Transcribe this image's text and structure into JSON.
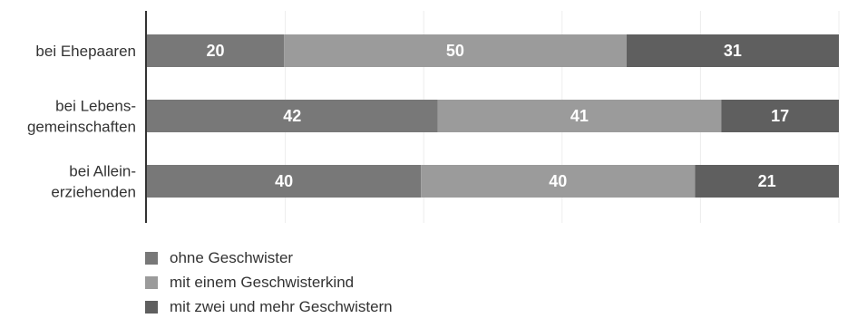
{
  "chart_data": {
    "type": "bar",
    "orientation": "horizontal",
    "stacked": true,
    "categories": [
      [
        "bei Ehepaaren"
      ],
      [
        "bei Lebens-",
        "gemeinschaften"
      ],
      [
        "bei Allein-",
        "erziehenden"
      ]
    ],
    "series": [
      {
        "name": "ohne Geschwister",
        "values": [
          20,
          42,
          40
        ],
        "color": "#787878"
      },
      {
        "name": "mit einem Geschwisterkind",
        "values": [
          50,
          41,
          40
        ],
        "color": "#9b9b9b"
      },
      {
        "name": "mit zwei und mehr Geschwistern",
        "values": [
          31,
          17,
          21
        ],
        "color": "#5f5f5f"
      }
    ],
    "grid": true,
    "legend": "bottom-left",
    "data_labels": true
  }
}
